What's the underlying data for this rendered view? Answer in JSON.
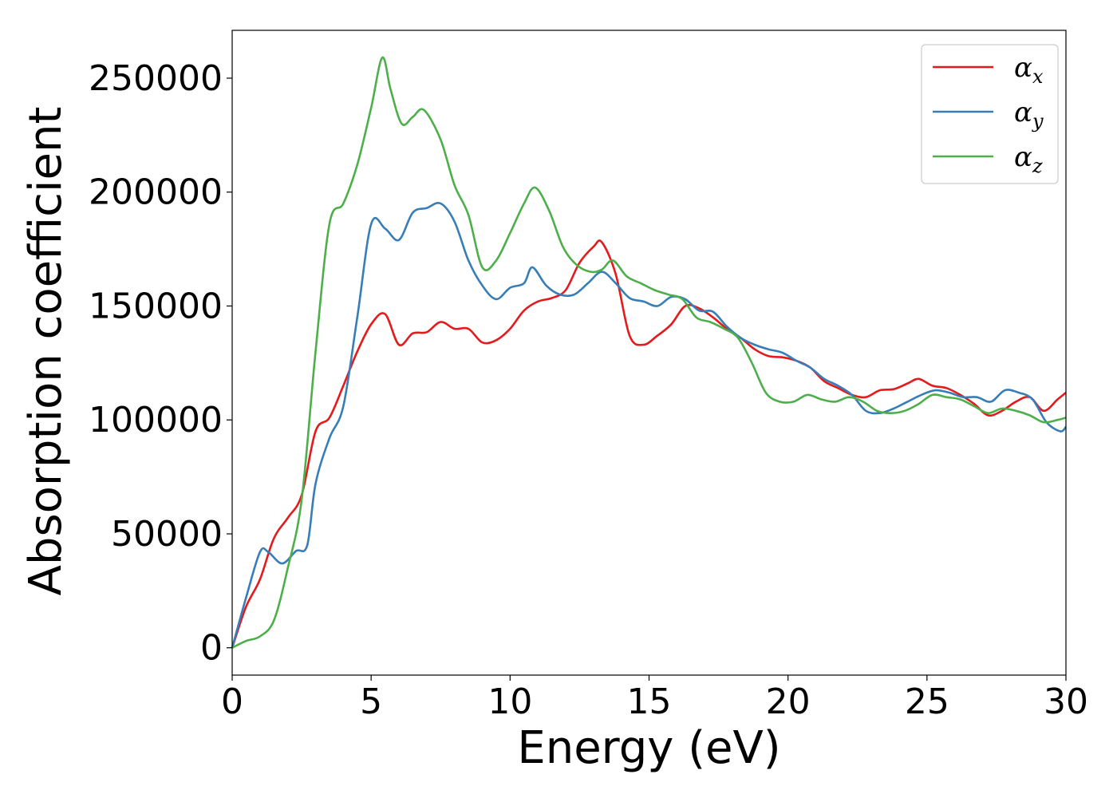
{
  "chart_data": {
    "type": "line",
    "xlabel": "Energy (eV)",
    "ylabel": "Absorption coefficient",
    "xlim": [
      0,
      30
    ],
    "ylim": [
      -12000,
      271000
    ],
    "x_ticks": [
      "0",
      "5",
      "10",
      "15",
      "20",
      "25",
      "30"
    ],
    "y_ticks": [
      "0",
      "50000",
      "100000",
      "150000",
      "200000",
      "250000"
    ],
    "grid": false,
    "legend_position": "top-right",
    "series": [
      {
        "name": "α",
        "subscript": "x",
        "color": "#e41a1c",
        "points": [
          [
            0,
            0
          ],
          [
            0.5,
            18000
          ],
          [
            1,
            30000
          ],
          [
            1.5,
            48000
          ],
          [
            2,
            57000
          ],
          [
            2.5,
            67000
          ],
          [
            3,
            95000
          ],
          [
            3.5,
            101000
          ],
          [
            4,
            115000
          ],
          [
            4.5,
            130000
          ],
          [
            5,
            142000
          ],
          [
            5.5,
            146500
          ],
          [
            6,
            133000
          ],
          [
            6.5,
            138000
          ],
          [
            7,
            138500
          ],
          [
            7.5,
            143000
          ],
          [
            8,
            140000
          ],
          [
            8.5,
            140000
          ],
          [
            9,
            134000
          ],
          [
            9.5,
            135000
          ],
          [
            10,
            140000
          ],
          [
            10.5,
            148000
          ],
          [
            11,
            152000
          ],
          [
            11.5,
            153500
          ],
          [
            12,
            157000
          ],
          [
            12.5,
            169000
          ],
          [
            13,
            176000
          ],
          [
            13.3,
            178000
          ],
          [
            13.8,
            164000
          ],
          [
            14.3,
            137000
          ],
          [
            14.8,
            133000
          ],
          [
            15.3,
            137000
          ],
          [
            15.8,
            142000
          ],
          [
            16.3,
            150000
          ],
          [
            16.8,
            149000
          ],
          [
            17.3,
            145000
          ],
          [
            17.8,
            140000
          ],
          [
            18.3,
            136000
          ],
          [
            18.8,
            131000
          ],
          [
            19.3,
            128000
          ],
          [
            19.8,
            127500
          ],
          [
            20.3,
            126000
          ],
          [
            20.8,
            123000
          ],
          [
            21.3,
            117000
          ],
          [
            21.8,
            114000
          ],
          [
            22.3,
            111000
          ],
          [
            22.8,
            110000
          ],
          [
            23.3,
            113000
          ],
          [
            23.8,
            113500
          ],
          [
            24.3,
            116000
          ],
          [
            24.7,
            118000
          ],
          [
            25.2,
            115000
          ],
          [
            25.7,
            114000
          ],
          [
            26.2,
            111000
          ],
          [
            26.7,
            107000
          ],
          [
            27.2,
            102000
          ],
          [
            27.7,
            104000
          ],
          [
            28.2,
            108000
          ],
          [
            28.7,
            110000
          ],
          [
            29.2,
            104000
          ],
          [
            29.7,
            109000
          ],
          [
            30,
            112000
          ]
        ]
      },
      {
        "name": "α",
        "subscript": "y",
        "color": "#377eb8",
        "points": [
          [
            0,
            0
          ],
          [
            0.5,
            22000
          ],
          [
            1,
            42000
          ],
          [
            1.3,
            42000
          ],
          [
            1.8,
            37000
          ],
          [
            2.3,
            42500
          ],
          [
            2.7,
            45000
          ],
          [
            3,
            72000
          ],
          [
            3.5,
            92000
          ],
          [
            4,
            106000
          ],
          [
            4.5,
            145000
          ],
          [
            5,
            186000
          ],
          [
            5.5,
            184000
          ],
          [
            6,
            179000
          ],
          [
            6.5,
            191000
          ],
          [
            7,
            193000
          ],
          [
            7.5,
            195000
          ],
          [
            8,
            187000
          ],
          [
            8.5,
            170000
          ],
          [
            9,
            159000
          ],
          [
            9.5,
            153000
          ],
          [
            10,
            158000
          ],
          [
            10.5,
            160000
          ],
          [
            10.8,
            167000
          ],
          [
            11.3,
            159000
          ],
          [
            11.8,
            155000
          ],
          [
            12.3,
            155000
          ],
          [
            12.8,
            160000
          ],
          [
            13.3,
            165000
          ],
          [
            13.8,
            160000
          ],
          [
            14.3,
            153500
          ],
          [
            14.8,
            152000
          ],
          [
            15.3,
            150000
          ],
          [
            15.8,
            154000
          ],
          [
            16.3,
            153000
          ],
          [
            16.8,
            148000
          ],
          [
            17.3,
            147500
          ],
          [
            17.8,
            141000
          ],
          [
            18.3,
            136000
          ],
          [
            18.8,
            133000
          ],
          [
            19.3,
            131000
          ],
          [
            19.8,
            129500
          ],
          [
            20.3,
            126000
          ],
          [
            20.8,
            123000
          ],
          [
            21.3,
            118000
          ],
          [
            21.8,
            115000
          ],
          [
            22.3,
            111000
          ],
          [
            22.8,
            104000
          ],
          [
            23.3,
            103000
          ],
          [
            23.8,
            105000
          ],
          [
            24.3,
            108000
          ],
          [
            24.8,
            111000
          ],
          [
            25.3,
            113000
          ],
          [
            25.8,
            112000
          ],
          [
            26.3,
            110000
          ],
          [
            26.8,
            110000
          ],
          [
            27.3,
            108000
          ],
          [
            27.8,
            113000
          ],
          [
            28.3,
            112000
          ],
          [
            28.8,
            109000
          ],
          [
            29.3,
            99000
          ],
          [
            29.8,
            95000
          ],
          [
            30,
            97000
          ]
        ]
      },
      {
        "name": "α",
        "subscript": "z",
        "color": "#4daf4a",
        "points": [
          [
            0,
            0
          ],
          [
            0.5,
            3000
          ],
          [
            1,
            5000
          ],
          [
            1.5,
            12000
          ],
          [
            2,
            35000
          ],
          [
            2.5,
            65000
          ],
          [
            3,
            130000
          ],
          [
            3.5,
            186000
          ],
          [
            4,
            195000
          ],
          [
            4.5,
            212000
          ],
          [
            5,
            237000
          ],
          [
            5.4,
            259000
          ],
          [
            5.7,
            245000
          ],
          [
            6.1,
            230000
          ],
          [
            6.5,
            233000
          ],
          [
            6.9,
            236000
          ],
          [
            7.5,
            223000
          ],
          [
            8,
            203000
          ],
          [
            8.5,
            190000
          ],
          [
            9,
            167000
          ],
          [
            9.5,
            170000
          ],
          [
            10,
            182000
          ],
          [
            10.5,
            195000
          ],
          [
            10.9,
            202000
          ],
          [
            11.4,
            192000
          ],
          [
            11.9,
            176000
          ],
          [
            12.4,
            168000
          ],
          [
            12.9,
            165000
          ],
          [
            13.3,
            166000
          ],
          [
            13.7,
            170000
          ],
          [
            14.2,
            163000
          ],
          [
            14.7,
            160000
          ],
          [
            15.2,
            157000
          ],
          [
            15.7,
            155000
          ],
          [
            16.2,
            153000
          ],
          [
            16.7,
            145000
          ],
          [
            17.2,
            143000
          ],
          [
            17.7,
            140000
          ],
          [
            18.2,
            136000
          ],
          [
            18.7,
            125000
          ],
          [
            19.2,
            112000
          ],
          [
            19.7,
            108000
          ],
          [
            20.2,
            108000
          ],
          [
            20.7,
            111000
          ],
          [
            21.2,
            109000
          ],
          [
            21.7,
            108000
          ],
          [
            22.2,
            110000
          ],
          [
            22.7,
            108000
          ],
          [
            23.2,
            104000
          ],
          [
            23.7,
            103000
          ],
          [
            24.2,
            104000
          ],
          [
            24.7,
            107000
          ],
          [
            25.2,
            111000
          ],
          [
            25.7,
            110000
          ],
          [
            26.2,
            109000
          ],
          [
            26.7,
            106000
          ],
          [
            27.2,
            103000
          ],
          [
            27.7,
            105000
          ],
          [
            28.2,
            104000
          ],
          [
            28.7,
            102000
          ],
          [
            29.2,
            99000
          ],
          [
            29.7,
            100000
          ],
          [
            30,
            101000
          ]
        ]
      }
    ]
  }
}
